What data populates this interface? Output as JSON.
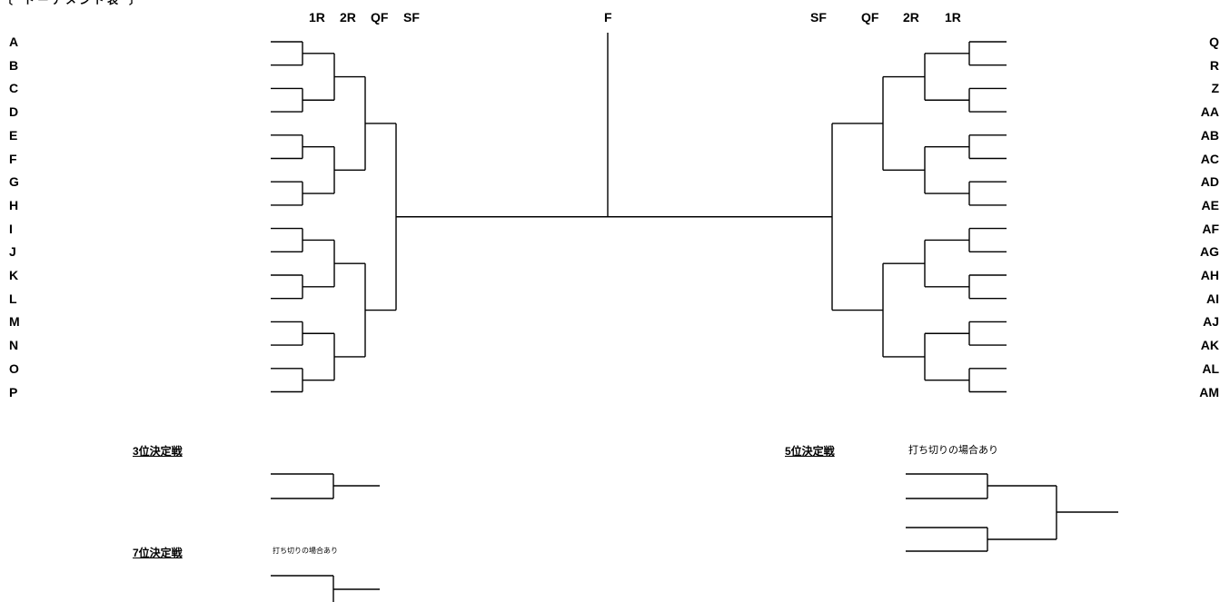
{
  "title_fragment": "〔　ト ー ナ メ ン ト 表　〕",
  "rounds_left": [
    "1R",
    "2R",
    "QF",
    "SF"
  ],
  "final_label": "F",
  "rounds_right": [
    "SF",
    "QF",
    "2R",
    "1R"
  ],
  "teams_left": [
    "A",
    "B",
    "C",
    "D",
    "E",
    "F",
    "G",
    "H",
    "I",
    "J",
    "K",
    "L",
    "M",
    "N",
    "O",
    "P"
  ],
  "teams_right": [
    "Q",
    "R",
    "Z",
    "AA",
    "AB",
    "AC",
    "AD",
    "AE",
    "AF",
    "AG",
    "AH",
    "AI",
    "AJ",
    "AK",
    "AL",
    "AM"
  ],
  "third_place": {
    "title": "3位決定戦"
  },
  "seventh_place": {
    "title": "7位決定戦",
    "note": "打ち切りの場合あり"
  },
  "fifth_place": {
    "title": "5位決定戦",
    "note": "打ち切りの場合あり"
  }
}
